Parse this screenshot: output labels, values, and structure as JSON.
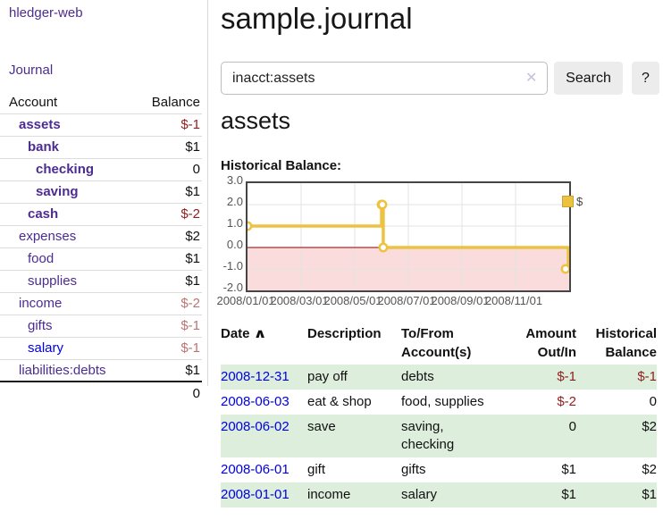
{
  "app": {
    "brand": "hledger-web"
  },
  "nav": {
    "journal": "Journal"
  },
  "sidebar": {
    "account_header": "Account",
    "balance_header": "Balance",
    "accounts": [
      {
        "name": "assets",
        "balance": "$-1"
      },
      {
        "name": "bank",
        "balance": "$1"
      },
      {
        "name": "checking",
        "balance": "0"
      },
      {
        "name": "saving",
        "balance": "$1"
      },
      {
        "name": "cash",
        "balance": "$-2"
      },
      {
        "name": "expenses",
        "balance": "$2"
      },
      {
        "name": "food",
        "balance": "$1"
      },
      {
        "name": "supplies",
        "balance": "$1"
      },
      {
        "name": "income",
        "balance": "$-2"
      },
      {
        "name": "gifts",
        "balance": "$-1"
      },
      {
        "name": "salary",
        "balance": "$-1"
      },
      {
        "name": "liabilities:debts",
        "balance": "$1"
      }
    ],
    "total": "0"
  },
  "main": {
    "title": "sample.journal",
    "search": {
      "query": "inacct:assets",
      "clear_icon": "✕",
      "search_button": "Search",
      "help_button": "?"
    },
    "account_title": "assets",
    "chart_heading": "Historical Balance:"
  },
  "chart_data": {
    "type": "line",
    "title": "Historical Balance:",
    "series": [
      {
        "name": "$",
        "color": "#edc240",
        "style": "step-after",
        "points": [
          [
            "2008-01-01",
            1
          ],
          [
            "2008-06-01",
            2
          ],
          [
            "2008-06-02",
            2
          ],
          [
            "2008-06-03",
            0
          ],
          [
            "2008-12-31",
            -1
          ]
        ]
      }
    ],
    "x_tick_labels": [
      "2008/01/01",
      "2008/03/01",
      "2008/05/01",
      "2008/07/01",
      "2008/09/01",
      "2008/11/01"
    ],
    "y_tick_labels": [
      "3.0",
      "2.0",
      "1.0",
      "0.0",
      "-1.0",
      "-2.0"
    ],
    "y_ticks": [
      3,
      2,
      1,
      0,
      -1,
      -2
    ],
    "ylim": [
      -2,
      3
    ],
    "x_range": [
      "2008-01-01",
      "2009-01-01"
    ],
    "grid": true,
    "legend": {
      "position": "top-right",
      "label": "$"
    },
    "negative_region": {
      "fill": "#fbdcdc",
      "zero_line_color": "#8b0000"
    },
    "grid_color": "#e3e3e3"
  },
  "register": {
    "sort_icon": "∧",
    "headers": {
      "date": "Date",
      "description": "Description",
      "accounts_line1": "To/From",
      "accounts_line2": "Account(s)",
      "amount_line1": "Amount",
      "amount_line2": "Out/In",
      "balance_line1": "Historical",
      "balance_line2": "Balance"
    },
    "rows": [
      {
        "date": "2008-12-31",
        "description": "pay off",
        "accounts": "debts",
        "amount": "$-1",
        "balance": "$-1"
      },
      {
        "date": "2008-06-03",
        "description": "eat & shop",
        "accounts": "food, supplies",
        "amount": "$-2",
        "balance": "0"
      },
      {
        "date": "2008-06-02",
        "description": "save",
        "accounts": "saving, checking",
        "amount": "0",
        "balance": "$2"
      },
      {
        "date": "2008-06-01",
        "description": "gift",
        "accounts": "gifts",
        "amount": "$1",
        "balance": "$2"
      },
      {
        "date": "2008-01-01",
        "description": "income",
        "accounts": "salary",
        "amount": "$1",
        "balance": "$1"
      }
    ]
  },
  "colors": {
    "link_purple": "#4c2c92",
    "link_blue": "#0000e0",
    "negative_dark": "#8f1f1f",
    "negative_light": "#bb7474",
    "row_stripe_green": "#ddeedd",
    "chart_line_gold": "#edc240"
  }
}
